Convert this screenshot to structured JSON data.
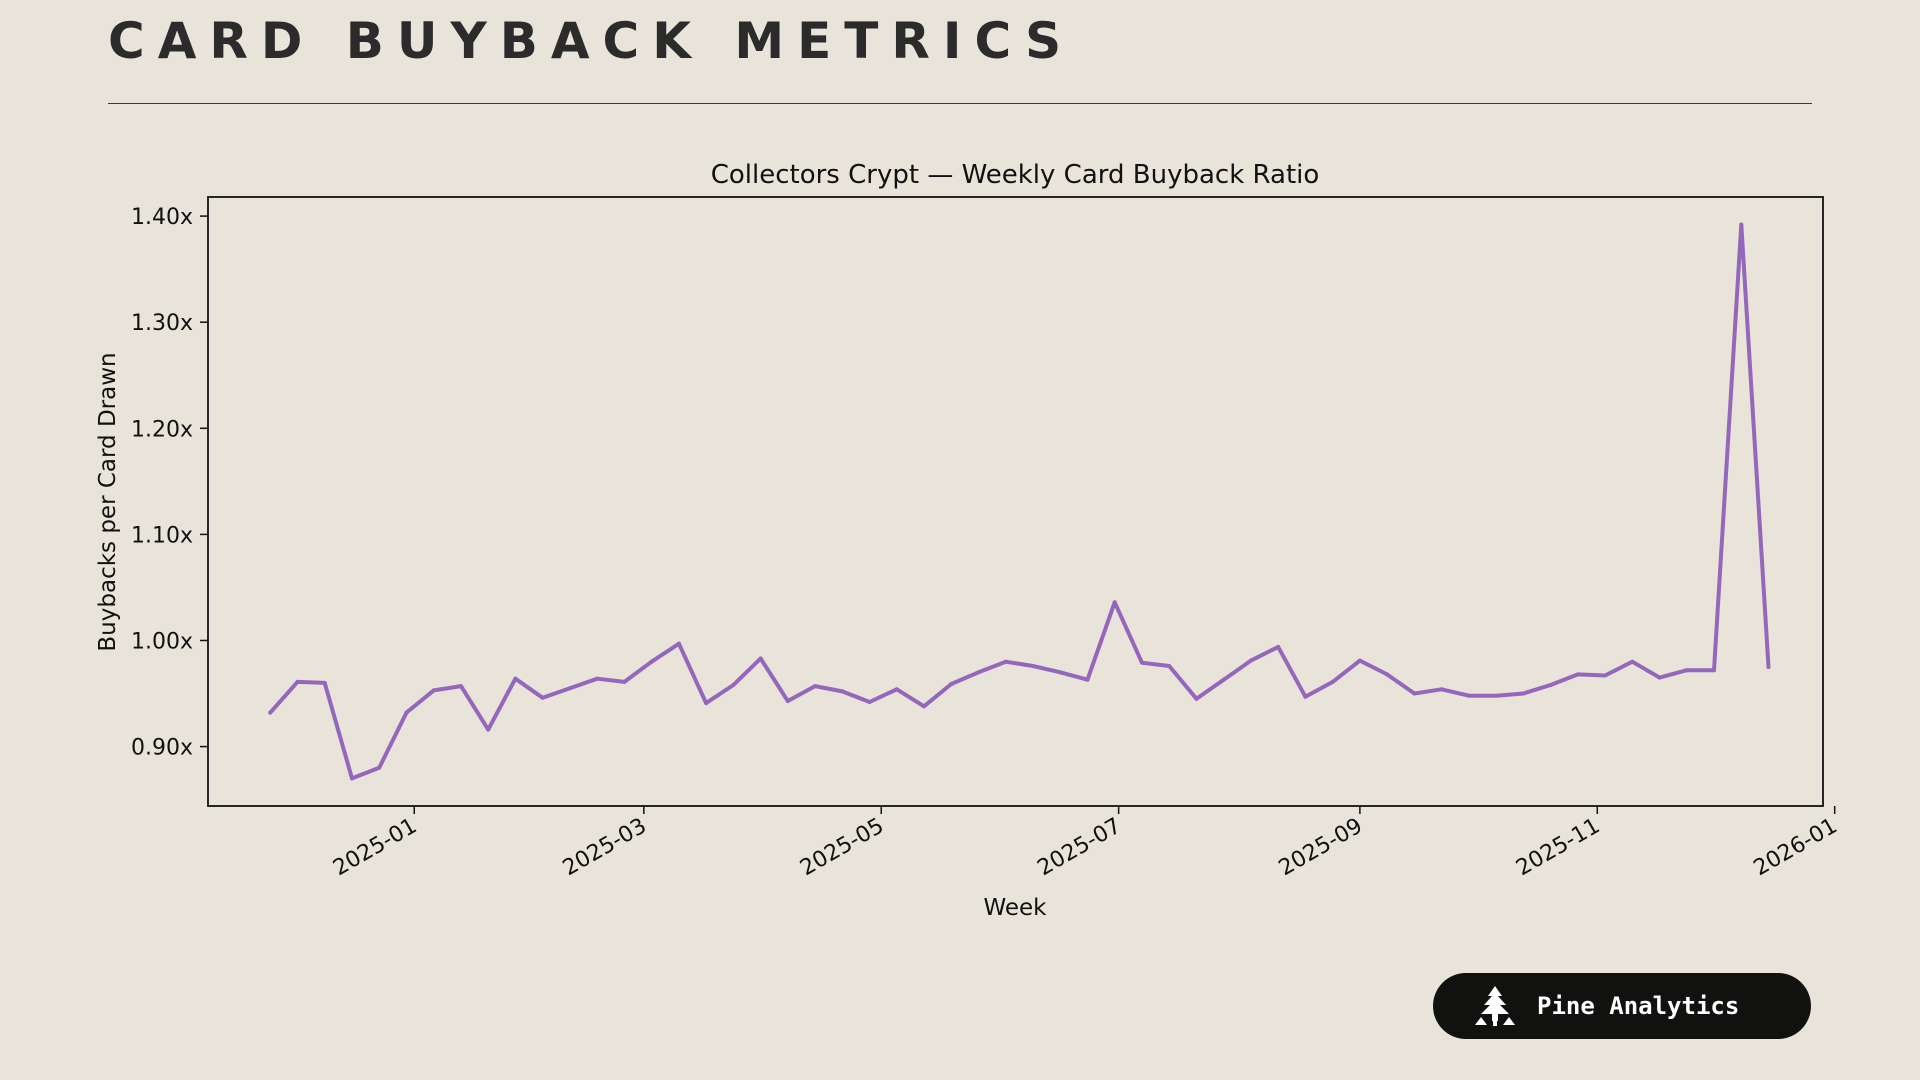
{
  "header": {
    "title": "CARD BUYBACK METRICS"
  },
  "brand": {
    "name": "Pine Analytics",
    "icon": "pine-tree-icon"
  },
  "colors": {
    "background": "#e8e4d9",
    "line": "#9467bd",
    "badge": "#111110"
  },
  "chart_data": {
    "type": "line",
    "title": "Collectors Crypt — Weekly Card Buyback Ratio",
    "xlabel": "Week",
    "ylabel": "Buybacks per Card Drawn",
    "xlim": [
      "2024-11-09",
      "2025-12-29"
    ],
    "ylim": [
      0.844,
      1.418
    ],
    "x_ticks": [
      "2025-01",
      "2025-03",
      "2025-05",
      "2025-07",
      "2025-09",
      "2025-11",
      "2026-01"
    ],
    "y_ticks": [
      "0.90x",
      "1.00x",
      "1.10x",
      "1.20x",
      "1.30x",
      "1.40x"
    ],
    "y_tick_values": [
      0.9,
      1.0,
      1.1,
      1.2,
      1.3,
      1.4
    ],
    "grid": false,
    "legend": "none",
    "series": [
      {
        "x": [
          "2024-11-25",
          "2024-12-02",
          "2024-12-09",
          "2024-12-16",
          "2024-12-23",
          "2024-12-30",
          "2025-01-06",
          "2025-01-13",
          "2025-01-20",
          "2025-01-27",
          "2025-02-03",
          "2025-02-10",
          "2025-02-17",
          "2025-02-24",
          "2025-03-03",
          "2025-03-10",
          "2025-03-17",
          "2025-03-24",
          "2025-03-31",
          "2025-04-07",
          "2025-04-14",
          "2025-04-21",
          "2025-04-28",
          "2025-05-05",
          "2025-05-12",
          "2025-05-19",
          "2025-05-26",
          "2025-06-02",
          "2025-06-09",
          "2025-06-16",
          "2025-06-23",
          "2025-06-30",
          "2025-07-07",
          "2025-07-14",
          "2025-07-21",
          "2025-07-28",
          "2025-08-04",
          "2025-08-11",
          "2025-08-18",
          "2025-08-25",
          "2025-09-01",
          "2025-09-08",
          "2025-09-15",
          "2025-09-22",
          "2025-09-29",
          "2025-10-06",
          "2025-10-13",
          "2025-10-20",
          "2025-10-27",
          "2025-11-03",
          "2025-11-10",
          "2025-11-17",
          "2025-11-24",
          "2025-12-01",
          "2025-12-08",
          "2025-12-15"
        ],
        "values": [
          0.932,
          0.961,
          0.96,
          0.87,
          0.88,
          0.932,
          0.953,
          0.957,
          0.916,
          0.964,
          0.946,
          0.955,
          0.964,
          0.961,
          0.98,
          0.997,
          0.941,
          0.958,
          0.983,
          0.943,
          0.957,
          0.952,
          0.942,
          0.954,
          0.938,
          0.959,
          0.97,
          0.98,
          0.976,
          0.97,
          0.963,
          1.036,
          0.979,
          0.976,
          0.945,
          0.963,
          0.981,
          0.994,
          0.947,
          0.961,
          0.981,
          0.968,
          0.95,
          0.954,
          0.948,
          0.948,
          0.95,
          0.958,
          0.968,
          0.967,
          0.98,
          0.965,
          0.972,
          0.972,
          1.392,
          0.975
        ]
      }
    ]
  }
}
